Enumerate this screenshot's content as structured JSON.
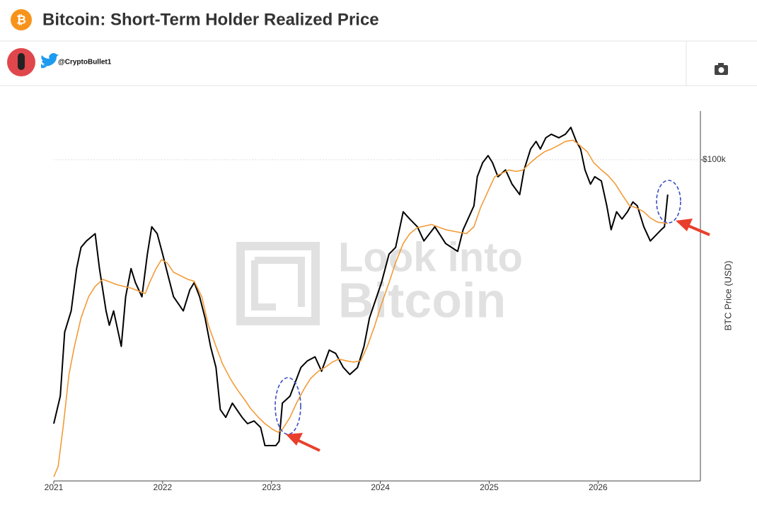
{
  "header": {
    "title": "Bitcoin: Short-Term Holder Realized Price",
    "handle": "@CryptoBullet1"
  },
  "watermark": [
    "Look into",
    "Bitcoin"
  ],
  "chart_data": {
    "type": "line",
    "y_label": "BTC Price (USD)",
    "log_scale_y": true,
    "grid": true,
    "xlim": [
      2021,
      2026.94
    ],
    "xticks": [
      2021,
      2022,
      2023,
      2024,
      2025,
      2026
    ],
    "ylim": [
      10100,
      141600
    ],
    "yticks": [
      {
        "value": 100000,
        "label": "$100k"
      }
    ],
    "series": [
      {
        "color": "#000000",
        "x": [
          2021.0,
          2021.06,
          2021.1,
          2021.16,
          2021.21,
          2021.25,
          2021.3,
          2021.38,
          2021.42,
          2021.48,
          2021.51,
          2021.55,
          2021.62,
          2021.66,
          2021.71,
          2021.75,
          2021.81,
          2021.86,
          2021.9,
          2021.95,
          2022.0,
          2022.05,
          2022.1,
          2022.19,
          2022.25,
          2022.29,
          2022.34,
          2022.39,
          2022.44,
          2022.49,
          2022.53,
          2022.58,
          2022.64,
          2022.73,
          2022.78,
          2022.84,
          2022.9,
          2022.94,
          2023.04,
          2023.07,
          2023.1,
          2023.17,
          2023.27,
          2023.33,
          2023.4,
          2023.46,
          2023.53,
          2023.59,
          2023.66,
          2023.72,
          2023.79,
          2023.85,
          2023.9,
          2024.01,
          2024.08,
          2024.14,
          2024.21,
          2024.27,
          2024.34,
          2024.4,
          2024.5,
          2024.6,
          2024.71,
          2024.76,
          2024.86,
          2024.89,
          2024.94,
          2024.99,
          2025.03,
          2025.08,
          2025.15,
          2025.21,
          2025.28,
          2025.32,
          2025.38,
          2025.43,
          2025.47,
          2025.52,
          2025.57,
          2025.64,
          2025.7,
          2025.75,
          2025.8,
          2025.84,
          2025.88,
          2025.93,
          2025.97,
          2026.03,
          2026.08,
          2026.12,
          2026.17,
          2026.22,
          2026.27,
          2026.32,
          2026.36,
          2026.42,
          2026.48,
          2026.58,
          2026.61,
          2026.64
        ],
        "values": [
          15200,
          18500,
          29200,
          34000,
          46000,
          53500,
          56000,
          59000,
          46000,
          34000,
          30700,
          34000,
          26400,
          37600,
          46000,
          41600,
          37600,
          51000,
          62000,
          59000,
          51000,
          43700,
          37600,
          34000,
          39500,
          41600,
          37600,
          32300,
          26400,
          22700,
          16800,
          15900,
          17600,
          15900,
          15200,
          15500,
          14800,
          13000,
          13000,
          13400,
          17600,
          18500,
          22700,
          23800,
          24500,
          22100,
          25700,
          25100,
          22700,
          21600,
          22700,
          26400,
          32300,
          41600,
          51000,
          53500,
          69000,
          65500,
          62000,
          56000,
          62000,
          55000,
          52000,
          60700,
          72000,
          88600,
          98000,
          103000,
          98000,
          88600,
          93000,
          84000,
          78000,
          93000,
          108000,
          114000,
          108000,
          117000,
          120000,
          117000,
          120000,
          126000,
          114000,
          108000,
          93000,
          84000,
          88600,
          86000,
          72000,
          60700,
          69000,
          65500,
          69000,
          74000,
          72000,
          62000,
          56000,
          60700,
          62000,
          78000
        ]
      },
      {
        "color": "#f29b38",
        "x": [
          2021.0,
          2021.04,
          2021.09,
          2021.14,
          2021.19,
          2021.25,
          2021.32,
          2021.38,
          2021.45,
          2021.58,
          2021.71,
          2021.84,
          2021.88,
          2021.94,
          2021.99,
          2022.04,
          2022.1,
          2022.23,
          2022.29,
          2022.36,
          2022.42,
          2022.49,
          2022.55,
          2022.62,
          2022.68,
          2022.75,
          2022.81,
          2022.88,
          2022.94,
          2023.01,
          2023.06,
          2023.1,
          2023.17,
          2023.23,
          2023.3,
          2023.36,
          2023.43,
          2023.49,
          2023.56,
          2023.62,
          2023.69,
          2023.75,
          2023.82,
          2023.88,
          2023.95,
          2024.01,
          2024.08,
          2024.14,
          2024.21,
          2024.27,
          2024.34,
          2024.47,
          2024.6,
          2024.79,
          2024.86,
          2024.92,
          2024.99,
          2025.05,
          2025.18,
          2025.25,
          2025.31,
          2025.38,
          2025.44,
          2025.51,
          2025.57,
          2025.64,
          2025.7,
          2025.77,
          2025.83,
          2025.9,
          2025.96,
          2026.03,
          2026.09,
          2026.16,
          2026.22,
          2026.29,
          2026.35,
          2026.42,
          2026.48,
          2026.55,
          2026.64
        ],
        "values": [
          10400,
          11200,
          15200,
          21600,
          26400,
          32300,
          37600,
          40500,
          42600,
          41000,
          40000,
          38500,
          41600,
          46000,
          49000,
          48000,
          44800,
          42600,
          42000,
          37600,
          30700,
          26400,
          23300,
          21000,
          19500,
          18100,
          16900,
          15900,
          15200,
          14600,
          14300,
          14600,
          15900,
          17600,
          19500,
          21000,
          22100,
          22700,
          23600,
          24100,
          23800,
          23600,
          23800,
          26400,
          30700,
          35700,
          41600,
          48000,
          55000,
          59000,
          61600,
          63000,
          60700,
          59000,
          62000,
          71000,
          80000,
          88600,
          93000,
          92000,
          93000,
          98000,
          102000,
          106000,
          108000,
          111000,
          114000,
          115000,
          111000,
          106000,
          98000,
          93000,
          89500,
          84000,
          78000,
          72000,
          71000,
          69000,
          66000,
          64000,
          63500
        ]
      }
    ]
  }
}
